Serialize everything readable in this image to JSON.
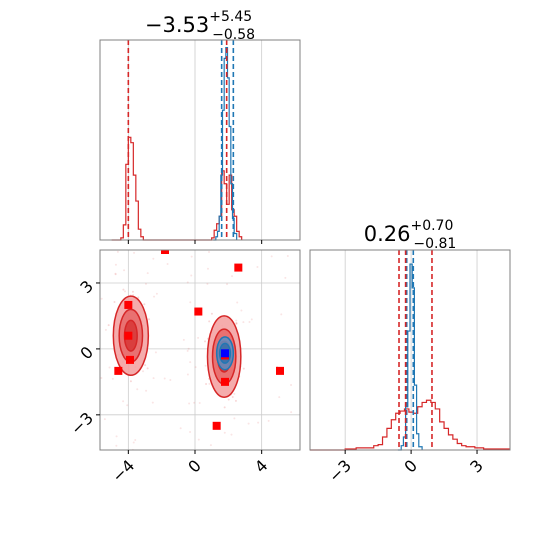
{
  "chart_data": [
    {
      "type": "histogram",
      "panel": "top-left",
      "title": {
        "value": "−3.53",
        "upper": "+5.45",
        "lower": "−0.58"
      },
      "xlim": [
        -5.7,
        6.3
      ],
      "grid": true,
      "quantile_lines_red": [
        -4.0,
        1.9
      ],
      "quantile_lines_blue": [
        1.6,
        2.3
      ],
      "series": [
        {
          "name": "",
          "color": "#d62728",
          "bins": [
            [
              -5.0,
              0
            ],
            [
              -4.6,
              0
            ],
            [
              -4.45,
              2
            ],
            [
              -4.3,
              14
            ],
            [
              -4.15,
              70
            ],
            [
              -4.0,
              95
            ],
            [
              -3.85,
              90
            ],
            [
              -3.7,
              60
            ],
            [
              -3.55,
              36
            ],
            [
              -3.4,
              10
            ],
            [
              -3.25,
              3
            ],
            [
              -3.1,
              0
            ],
            [
              0.8,
              0
            ],
            [
              1.0,
              2
            ],
            [
              1.15,
              9
            ],
            [
              1.3,
              15
            ],
            [
              1.45,
              22
            ],
            [
              1.6,
              64
            ],
            [
              1.75,
              52
            ],
            [
              1.9,
              33
            ],
            [
              2.05,
              60
            ],
            [
              2.2,
              28
            ],
            [
              2.35,
              22
            ],
            [
              2.5,
              8
            ],
            [
              2.65,
              3
            ],
            [
              2.8,
              0
            ]
          ]
        },
        {
          "name": "",
          "color": "#1f77b4",
          "bins": [
            [
              1.1,
              0
            ],
            [
              1.25,
              3
            ],
            [
              1.35,
              8
            ],
            [
              1.45,
              22
            ],
            [
              1.55,
              60
            ],
            [
              1.65,
              120
            ],
            [
              1.75,
              168
            ],
            [
              1.85,
              178
            ],
            [
              1.95,
              150
            ],
            [
              2.05,
              105
            ],
            [
              2.15,
              52
            ],
            [
              2.25,
              20
            ],
            [
              2.35,
              6
            ],
            [
              2.5,
              0
            ]
          ]
        }
      ]
    },
    {
      "type": "scatter",
      "panel": "bottom-left",
      "xlim": [
        -5.7,
        6.3
      ],
      "ylim": [
        -4.6,
        4.5
      ],
      "x_ticks": [
        "−4",
        "0",
        "4"
      ],
      "x_tick_values": [
        -4,
        0,
        4
      ],
      "y_ticks": [
        "3",
        "0",
        "−3"
      ],
      "y_tick_values": [
        3,
        0,
        -3
      ],
      "grid": true,
      "red_markers": [
        [
          -4.6,
          -1.0
        ],
        [
          -4.0,
          2.0
        ],
        [
          -4.0,
          0.6
        ],
        [
          -3.9,
          -0.5
        ],
        [
          -1.8,
          4.5
        ],
        [
          0.2,
          1.7
        ],
        [
          2.6,
          3.7
        ],
        [
          1.8,
          -0.3
        ],
        [
          1.8,
          -1.5
        ],
        [
          1.3,
          -3.5
        ],
        [
          5.1,
          -1.0
        ]
      ],
      "blue_marker": [
        1.8,
        -0.2
      ],
      "contour_regions": [
        {
          "name": "red-cluster-left",
          "color": "#d62728",
          "cx": -3.85,
          "cy": 0.6,
          "rx": [
            1.05,
            0.7,
            0.38
          ],
          "ry": [
            1.8,
            1.2,
            0.7
          ]
        },
        {
          "name": "red-cluster-right",
          "color": "#d62728",
          "cx": 1.75,
          "cy": -0.35,
          "rx": [
            1.0,
            0.7,
            0.4
          ],
          "ry": [
            1.85,
            1.25,
            0.7
          ]
        },
        {
          "name": "blue-cluster-right",
          "color": "#1f77b4",
          "cx": 1.8,
          "cy": -0.2,
          "rx": [
            0.5,
            0.32
          ],
          "ry": [
            0.75,
            0.45
          ]
        }
      ]
    },
    {
      "type": "histogram",
      "panel": "bottom-right",
      "title": {
        "value": "0.26",
        "upper": "+0.70",
        "lower": "−0.81"
      },
      "xlim": [
        -4.6,
        4.5
      ],
      "x_ticks": [
        "−3",
        "0",
        "3"
      ],
      "x_tick_values": [
        -3,
        0,
        3
      ],
      "grid": true,
      "quantile_lines_red": [
        -0.55,
        -0.25,
        0.95
      ],
      "quantile_lines_blue": [
        -0.2,
        0.1
      ],
      "series": [
        {
          "name": "",
          "color": "#d62728",
          "bins": [
            [
              -4.6,
              0
            ],
            [
              -3.0,
              1
            ],
            [
              -2.5,
              2
            ],
            [
              -2.0,
              2
            ],
            [
              -1.7,
              4
            ],
            [
              -1.5,
              5
            ],
            [
              -1.3,
              12
            ],
            [
              -1.1,
              20
            ],
            [
              -0.9,
              28
            ],
            [
              -0.7,
              34
            ],
            [
              -0.5,
              36
            ],
            [
              -0.3,
              38
            ],
            [
              -0.1,
              35
            ],
            [
              0.1,
              34
            ],
            [
              0.3,
              40
            ],
            [
              0.5,
              44
            ],
            [
              0.7,
              46
            ],
            [
              0.9,
              44
            ],
            [
              1.1,
              38
            ],
            [
              1.3,
              26
            ],
            [
              1.5,
              20
            ],
            [
              1.7,
              14
            ],
            [
              1.9,
              10
            ],
            [
              2.1,
              6
            ],
            [
              2.3,
              4
            ],
            [
              2.5,
              3
            ],
            [
              2.9,
              2
            ],
            [
              3.3,
              1
            ],
            [
              3.7,
              1
            ],
            [
              4.5,
              1
            ]
          ]
        },
        {
          "name": "",
          "color": "#1f77b4",
          "bins": [
            [
              -0.6,
              0
            ],
            [
              -0.45,
              4
            ],
            [
              -0.35,
              12
            ],
            [
              -0.25,
              40
            ],
            [
              -0.15,
              110
            ],
            [
              -0.05,
              172
            ],
            [
              0.05,
              150
            ],
            [
              0.15,
              60
            ],
            [
              0.25,
              15
            ],
            [
              0.35,
              3
            ],
            [
              0.5,
              0
            ]
          ]
        }
      ]
    }
  ]
}
